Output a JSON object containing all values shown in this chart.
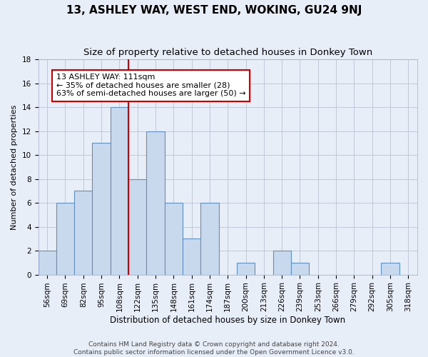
{
  "title": "13, ASHLEY WAY, WEST END, WOKING, GU24 9NJ",
  "subtitle": "Size of property relative to detached houses in Donkey Town",
  "xlabel": "Distribution of detached houses by size in Donkey Town",
  "ylabel": "Number of detached properties",
  "footer_line1": "Contains HM Land Registry data © Crown copyright and database right 2024.",
  "footer_line2": "Contains public sector information licensed under the Open Government Licence v3.0.",
  "bin_labels": [
    "56sqm",
    "69sqm",
    "82sqm",
    "95sqm",
    "108sqm",
    "122sqm",
    "135sqm",
    "148sqm",
    "161sqm",
    "174sqm",
    "187sqm",
    "200sqm",
    "213sqm",
    "226sqm",
    "239sqm",
    "253sqm",
    "266sqm",
    "279sqm",
    "292sqm",
    "305sqm",
    "318sqm"
  ],
  "bar_heights": [
    2,
    6,
    7,
    11,
    14,
    8,
    12,
    6,
    3,
    6,
    0,
    1,
    0,
    2,
    1,
    0,
    0,
    0,
    0,
    1,
    0
  ],
  "bar_color": "#c8d9ed",
  "bar_edge_color": "#6090c0",
  "grid_color": "#c0c8d8",
  "background_color": "#e8eef8",
  "annotation_text": "13 ASHLEY WAY: 111sqm\n← 35% of detached houses are smaller (28)\n63% of semi-detached houses are larger (50) →",
  "annotation_box_color": "#ffffff",
  "annotation_box_edge_color": "#cc0000",
  "vline_color": "#cc0000",
  "vline_x": 4.5,
  "ylim": [
    0,
    18
  ],
  "yticks": [
    0,
    2,
    4,
    6,
    8,
    10,
    12,
    14,
    16,
    18
  ],
  "title_fontsize": 11,
  "subtitle_fontsize": 9.5,
  "xlabel_fontsize": 8.5,
  "ylabel_fontsize": 8,
  "tick_fontsize": 7.5,
  "annotation_fontsize": 8,
  "footer_fontsize": 6.5
}
